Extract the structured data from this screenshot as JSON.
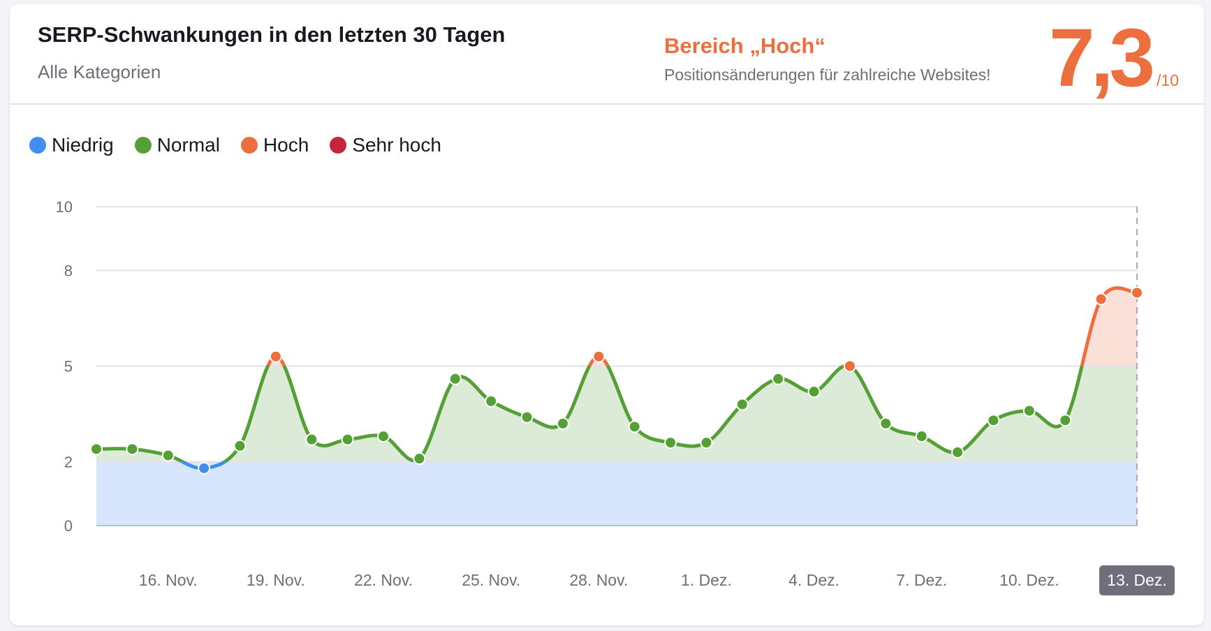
{
  "header": {
    "title": "SERP-Schwankungen in den letzten 30 Tagen",
    "subtitle": "Alle Kategorien",
    "range_title": "Bereich „Hoch“",
    "range_description": "Positionsänderungen für zahlreiche Websites!",
    "score": "7,3",
    "score_max": "/10"
  },
  "colors": {
    "accent": "#ee6f3e",
    "niedrig": "#3f8ef0",
    "normal": "#55a036",
    "hoch": "#ee6f3e",
    "sehr_hoch": "#c4253a"
  },
  "chart_data": {
    "type": "line",
    "legend": [
      {
        "name": "Niedrig",
        "range": [
          0,
          2
        ],
        "color": "#3f8ef0",
        "fill": "#d7e6fc"
      },
      {
        "name": "Normal",
        "range": [
          2,
          5
        ],
        "color": "#55a036",
        "fill": "#dcebd7"
      },
      {
        "name": "Hoch",
        "range": [
          5,
          8
        ],
        "color": "#ee6f3e",
        "fill": "#fae0d6"
      },
      {
        "name": "Sehr hoch",
        "range": [
          8,
          10
        ],
        "color": "#c4253a",
        "fill": "#f5d3d8"
      }
    ],
    "legend_position": "top-left",
    "ylim": [
      0,
      10
    ],
    "yticks": [
      "0",
      "2",
      "5",
      "8",
      "10"
    ],
    "grid": true,
    "x": [
      "14. Nov.",
      "15. Nov.",
      "16. Nov.",
      "17. Nov.",
      "18. Nov.",
      "19. Nov.",
      "20. Nov.",
      "21. Nov.",
      "22. Nov.",
      "23. Nov.",
      "24. Nov.",
      "25. Nov.",
      "26. Nov.",
      "27. Nov.",
      "28. Nov.",
      "29. Nov.",
      "30. Nov.",
      "1. Dez.",
      "2. Dez.",
      "3. Dez.",
      "4. Dez.",
      "5. Dez.",
      "6. Dez.",
      "7. Dez.",
      "8. Dez.",
      "9. Dez.",
      "10. Dez.",
      "11. Dez.",
      "12. Dez.",
      "13. Dez."
    ],
    "values": [
      2.4,
      2.4,
      2.2,
      1.8,
      2.5,
      5.3,
      2.7,
      2.7,
      2.8,
      2.1,
      4.6,
      3.9,
      3.4,
      3.2,
      5.3,
      3.1,
      2.6,
      2.6,
      3.8,
      4.6,
      4.2,
      5.0,
      3.2,
      2.8,
      2.3,
      3.3,
      3.6,
      3.3,
      7.1,
      7.3
    ],
    "xtick_labels": [
      "16. Nov.",
      "19. Nov.",
      "22. Nov.",
      "25. Nov.",
      "28. Nov.",
      "1. Dez.",
      "4. Dez.",
      "7. Dez.",
      "10. Dez.",
      "13. Dez."
    ],
    "highlighted_x": "13. Dez."
  }
}
